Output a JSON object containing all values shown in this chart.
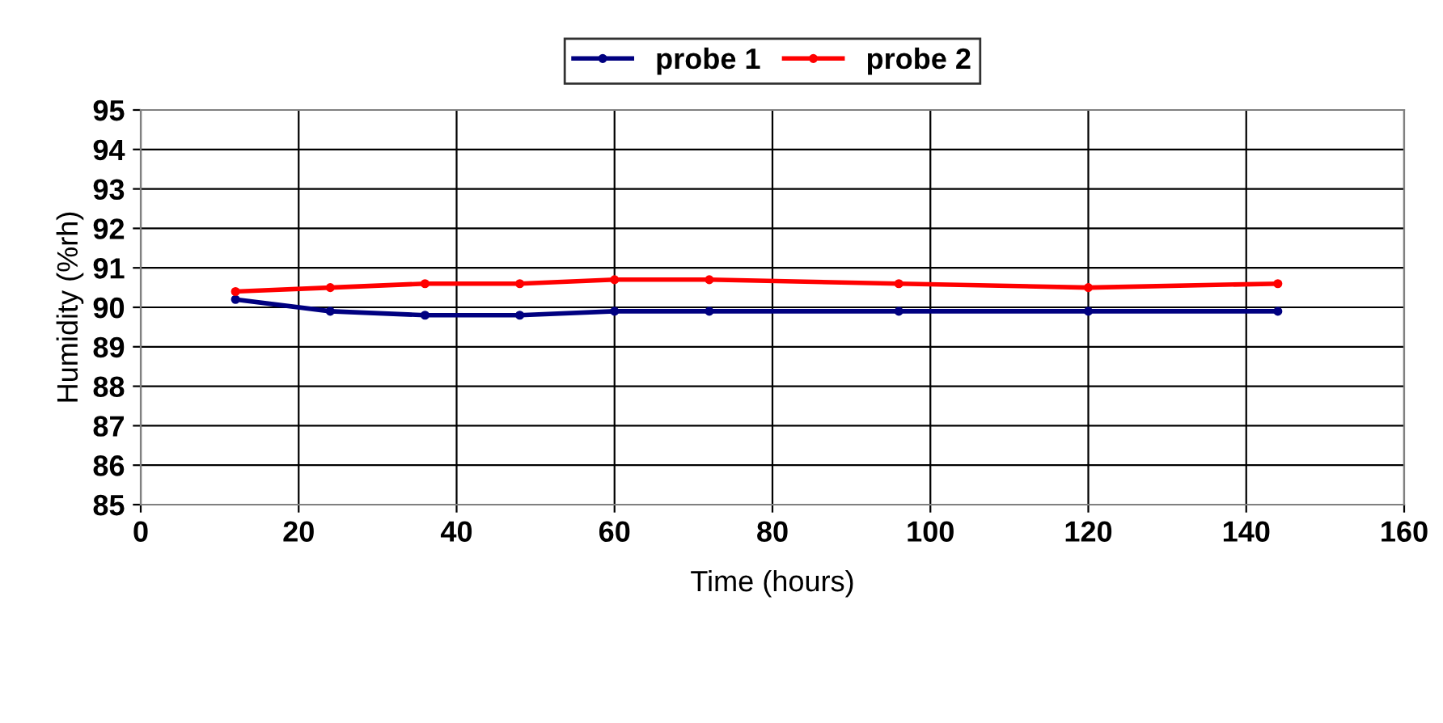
{
  "chart_data": {
    "type": "line",
    "xlabel": "Time (hours)",
    "ylabel": "Humidity (%rh)",
    "x": [
      12,
      24,
      36,
      48,
      60,
      72,
      96,
      120,
      144
    ],
    "series": [
      {
        "name": "probe 1",
        "color": "#000080",
        "values": [
          90.2,
          89.9,
          89.8,
          89.8,
          89.9,
          89.9,
          89.9,
          89.9,
          89.9
        ]
      },
      {
        "name": "probe 2",
        "color": "#ff0000",
        "values": [
          90.4,
          90.5,
          90.6,
          90.6,
          90.7,
          90.7,
          90.6,
          90.5,
          90.6
        ]
      }
    ],
    "xlim": [
      0,
      160
    ],
    "xticks": [
      0,
      20,
      40,
      60,
      80,
      100,
      120,
      140,
      160
    ],
    "ylim": [
      85,
      95
    ],
    "yticks": [
      85,
      86,
      87,
      88,
      89,
      90,
      91,
      92,
      93,
      94,
      95
    ],
    "grid": true,
    "legend": "top",
    "marker": "circle",
    "line_style": "solid"
  }
}
